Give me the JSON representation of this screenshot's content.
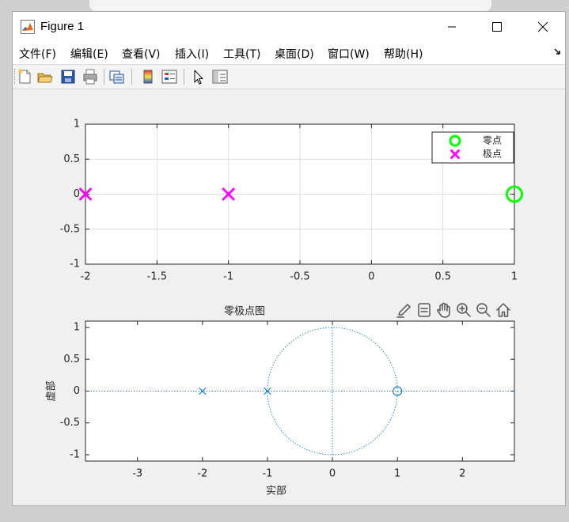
{
  "window": {
    "title": "Figure 1",
    "controls": [
      "minimize",
      "maximize",
      "close"
    ]
  },
  "menubar": {
    "items": [
      "文件(F)",
      "编辑(E)",
      "查看(V)",
      "插入(I)",
      "工具(T)",
      "桌面(D)",
      "窗口(W)",
      "帮助(H)"
    ]
  },
  "toolbar": {
    "icons": [
      "new-figure-icon",
      "open-file-icon",
      "save-icon",
      "print-icon",
      "link-plot-icon",
      "colorbar-icon",
      "legend-icon",
      "edit-plot-arrow-icon",
      "property-inspector-icon"
    ]
  },
  "axes_toolbar": {
    "icons": [
      "brush-icon",
      "data-tips-icon",
      "pan-hand-icon",
      "zoom-in-icon",
      "zoom-out-icon",
      "home-icon"
    ]
  },
  "colors": {
    "zero_marker": "#00ff00",
    "pole_marker": "#ff00ff",
    "zplane_marker": "#0072bd"
  },
  "chart_data": [
    {
      "type": "scatter",
      "xlim": [
        -2,
        1
      ],
      "ylim": [
        -1,
        1
      ],
      "xticks": [
        "-2",
        "-1.5",
        "-1",
        "-0.5",
        "0",
        "0.5",
        "1"
      ],
      "yticks": [
        "1",
        "0.5",
        "0",
        "-0.5",
        "-1"
      ],
      "grid": true,
      "legend": {
        "placement": "top-right",
        "entries": [
          "零点",
          "极点"
        ]
      },
      "series": [
        {
          "name": "零点",
          "marker": "circle",
          "color": "#00ff00",
          "x": [
            1
          ],
          "y": [
            0
          ]
        },
        {
          "name": "极点",
          "marker": "x",
          "color": "#ff00ff",
          "x": [
            -2,
            -1
          ],
          "y": [
            0,
            0
          ]
        }
      ]
    },
    {
      "type": "scatter",
      "title": "零极点图",
      "xlabel": "实部",
      "ylabel": "虚部",
      "xlim": [
        -3.8,
        2.8
      ],
      "ylim": [
        -1.1,
        1.1
      ],
      "xticks": [
        "-3",
        "-2",
        "-1",
        "0",
        "1",
        "2"
      ],
      "yticks": [
        "1",
        "0.5",
        "0",
        "-0.5",
        "-1"
      ],
      "grid": false,
      "unit_circle": true,
      "series": [
        {
          "marker": "circle",
          "color": "#0072bd",
          "x": [
            1
          ],
          "y": [
            0
          ]
        },
        {
          "marker": "x",
          "color": "#0072bd",
          "x": [
            -2,
            -1
          ],
          "y": [
            0,
            0
          ]
        }
      ]
    }
  ]
}
